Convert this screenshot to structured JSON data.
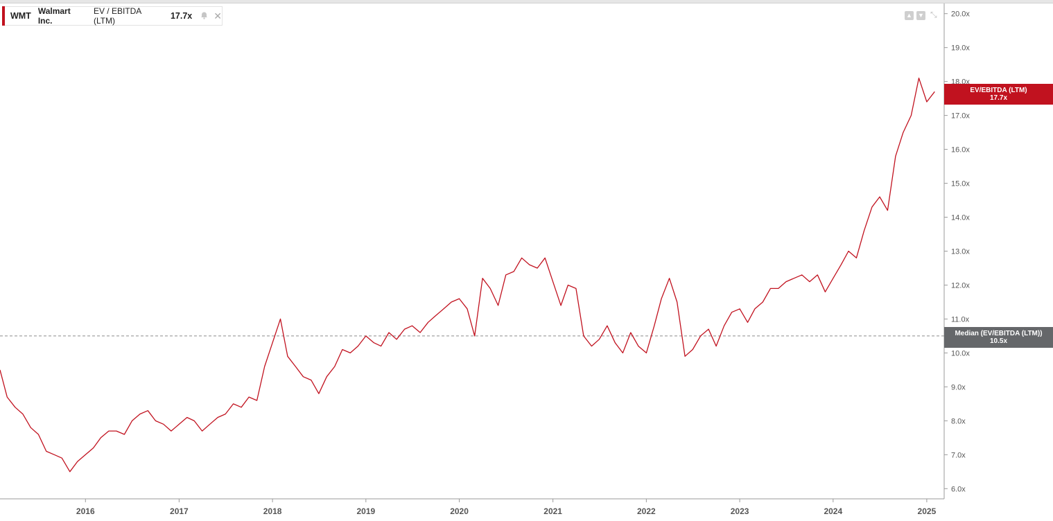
{
  "legend": {
    "ticker": "WMT",
    "company": "Walmart Inc.",
    "metric": "EV / EBITDA (LTM)",
    "value": "17.7x"
  },
  "tags": {
    "current_label": "EV/EBITDA (LTM)",
    "current_value": "17.7x",
    "median_label": "Median (EV/EBITDA (LTM))",
    "median_value": "10.5x"
  },
  "colors": {
    "series": "#c1121f",
    "median_tag": "#65676a",
    "axis_text": "#555555"
  },
  "icons": {
    "legend": [
      "bell-icon",
      "close-icon"
    ],
    "controls": [
      "move-up-icon",
      "move-down-icon",
      "expand-icon"
    ]
  },
  "chart_data": {
    "type": "line",
    "title": "",
    "xlabel": "",
    "ylabel": "",
    "ylim": [
      5.7,
      20.3
    ],
    "xlim": [
      "2015-02-01",
      "2025-03-10"
    ],
    "x_ticks": [
      "2016",
      "2017",
      "2018",
      "2019",
      "2020",
      "2021",
      "2022",
      "2023",
      "2024",
      "2025"
    ],
    "y_ticks": [
      "6.0x",
      "7.0x",
      "8.0x",
      "9.0x",
      "10.0x",
      "11.0x",
      "12.0x",
      "13.0x",
      "14.0x",
      "15.0x",
      "16.0x",
      "17.0x",
      "18.0x",
      "19.0x",
      "20.0x"
    ],
    "reference_lines": [
      {
        "name": "Median (EV/EBITDA (LTM))",
        "value": 10.5,
        "style": "dashed"
      }
    ],
    "series": [
      {
        "name": "EV / EBITDA (LTM)",
        "x": [
          "2015-02-01",
          "2015-03-01",
          "2015-04-01",
          "2015-05-01",
          "2015-06-01",
          "2015-07-01",
          "2015-08-01",
          "2015-09-01",
          "2015-10-01",
          "2015-11-01",
          "2015-12-01",
          "2016-01-01",
          "2016-02-01",
          "2016-03-01",
          "2016-04-01",
          "2016-05-01",
          "2016-06-01",
          "2016-07-01",
          "2016-08-01",
          "2016-09-01",
          "2016-10-01",
          "2016-11-01",
          "2016-12-01",
          "2017-01-01",
          "2017-02-01",
          "2017-03-01",
          "2017-04-01",
          "2017-05-01",
          "2017-06-01",
          "2017-07-01",
          "2017-08-01",
          "2017-09-01",
          "2017-10-01",
          "2017-11-01",
          "2017-12-01",
          "2018-01-01",
          "2018-02-01",
          "2018-03-01",
          "2018-04-01",
          "2018-05-01",
          "2018-06-01",
          "2018-07-01",
          "2018-08-01",
          "2018-09-01",
          "2018-10-01",
          "2018-11-01",
          "2018-12-01",
          "2019-01-01",
          "2019-02-01",
          "2019-03-01",
          "2019-04-01",
          "2019-05-01",
          "2019-06-01",
          "2019-07-01",
          "2019-08-01",
          "2019-09-01",
          "2019-10-01",
          "2019-11-01",
          "2019-12-01",
          "2020-01-01",
          "2020-02-01",
          "2020-03-01",
          "2020-04-01",
          "2020-05-01",
          "2020-06-01",
          "2020-07-01",
          "2020-08-01",
          "2020-09-01",
          "2020-10-01",
          "2020-11-01",
          "2020-12-01",
          "2021-01-01",
          "2021-02-01",
          "2021-03-01",
          "2021-04-01",
          "2021-05-01",
          "2021-06-01",
          "2021-07-01",
          "2021-08-01",
          "2021-09-01",
          "2021-10-01",
          "2021-11-01",
          "2021-12-01",
          "2022-01-01",
          "2022-02-01",
          "2022-03-01",
          "2022-04-01",
          "2022-05-01",
          "2022-06-01",
          "2022-07-01",
          "2022-08-01",
          "2022-09-01",
          "2022-10-01",
          "2022-11-01",
          "2022-12-01",
          "2023-01-01",
          "2023-02-01",
          "2023-03-01",
          "2023-04-01",
          "2023-05-01",
          "2023-06-01",
          "2023-07-01",
          "2023-08-01",
          "2023-09-01",
          "2023-10-01",
          "2023-11-01",
          "2023-12-01",
          "2024-01-01",
          "2024-02-01",
          "2024-03-01",
          "2024-04-01",
          "2024-05-01",
          "2024-06-01",
          "2024-07-01",
          "2024-08-01",
          "2024-09-01",
          "2024-10-01",
          "2024-11-01",
          "2024-12-01",
          "2025-01-01",
          "2025-02-01"
        ],
        "values": [
          9.5,
          8.7,
          8.4,
          8.2,
          7.8,
          7.6,
          7.1,
          7.0,
          6.9,
          6.5,
          6.8,
          7.0,
          7.2,
          7.5,
          7.7,
          7.7,
          7.6,
          8.0,
          8.2,
          8.3,
          8.0,
          7.9,
          7.7,
          7.9,
          8.1,
          8.0,
          7.7,
          7.9,
          8.1,
          8.2,
          8.5,
          8.4,
          8.7,
          8.6,
          9.6,
          10.3,
          11.0,
          9.9,
          9.6,
          9.3,
          9.2,
          8.8,
          9.3,
          9.6,
          10.1,
          10.0,
          10.2,
          10.5,
          10.3,
          10.2,
          10.6,
          10.4,
          10.7,
          10.8,
          10.6,
          10.9,
          11.1,
          11.3,
          11.5,
          11.6,
          11.3,
          10.5,
          12.2,
          11.9,
          11.4,
          12.3,
          12.4,
          12.8,
          12.6,
          12.5,
          12.8,
          12.1,
          11.4,
          12.0,
          11.9,
          10.5,
          10.2,
          10.4,
          10.8,
          10.3,
          10.0,
          10.6,
          10.2,
          10.0,
          10.8,
          11.6,
          12.2,
          11.5,
          9.9,
          10.1,
          10.5,
          10.7,
          10.2,
          10.8,
          11.2,
          11.3,
          10.9,
          11.3,
          11.5,
          11.9,
          11.9,
          12.1,
          12.2,
          12.3,
          12.1,
          12.3,
          11.8,
          12.2,
          12.6,
          13.0,
          12.8,
          13.6,
          14.3,
          14.6,
          14.2,
          15.8,
          16.5,
          17.0,
          18.1,
          17.4,
          17.7
        ]
      }
    ]
  }
}
